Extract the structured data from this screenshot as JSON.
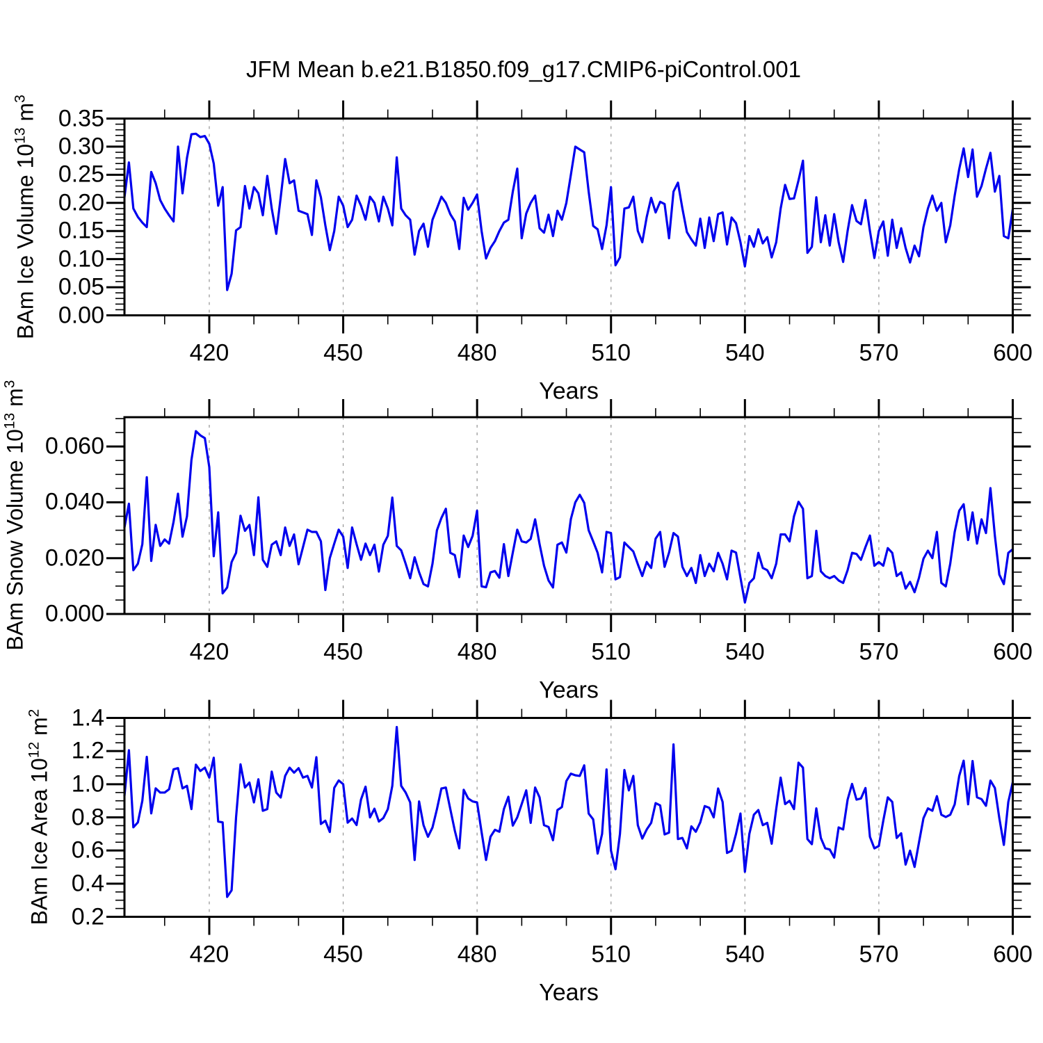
{
  "title": "JFM Mean b.e21.B1850.f09_g17.CMIP6-piControl.001",
  "line_color": "#0000ee",
  "grid_color": "#999999",
  "frame_color": "#000000",
  "x_axis": {
    "label": "Years",
    "min": 401,
    "max": 600,
    "major_ticks": [
      420,
      450,
      480,
      510,
      540,
      570,
      600
    ],
    "minor_step": 10,
    "gridlines": "dashed-vertical-at-major-ticks"
  },
  "chart_data": [
    {
      "type": "line",
      "name": "BAm Ice Volume",
      "ylabel": {
        "base": "BAm Ice Volume 10",
        "exp": "13",
        "unit": " m",
        "unit_exp": "3"
      },
      "ylim": [
        0.0,
        0.35
      ],
      "yticks": [
        0.0,
        0.05,
        0.1,
        0.15,
        0.2,
        0.25,
        0.3,
        0.35
      ],
      "ytick_labels": [
        "0.00",
        "0.05",
        "0.10",
        "0.15",
        "0.20",
        "0.25",
        "0.30",
        "0.35"
      ],
      "y_minor_step": 0.01,
      "x_start": 401,
      "x_step": 1,
      "values": [
        0.21,
        0.272,
        0.19,
        0.175,
        0.165,
        0.157,
        0.255,
        0.235,
        0.205,
        0.19,
        0.178,
        0.167,
        0.3,
        0.217,
        0.28,
        0.322,
        0.323,
        0.317,
        0.319,
        0.305,
        0.27,
        0.195,
        0.228,
        0.045,
        0.074,
        0.151,
        0.157,
        0.23,
        0.19,
        0.228,
        0.217,
        0.178,
        0.248,
        0.19,
        0.145,
        0.21,
        0.278,
        0.235,
        0.24,
        0.186,
        0.183,
        0.18,
        0.143,
        0.24,
        0.21,
        0.16,
        0.116,
        0.15,
        0.211,
        0.195,
        0.157,
        0.17,
        0.213,
        0.195,
        0.17,
        0.211,
        0.2,
        0.167,
        0.211,
        0.19,
        0.16,
        0.281,
        0.19,
        0.178,
        0.17,
        0.108,
        0.15,
        0.163,
        0.122,
        0.17,
        0.19,
        0.211,
        0.2,
        0.18,
        0.167,
        0.118,
        0.209,
        0.188,
        0.2,
        0.215,
        0.15,
        0.101,
        0.12,
        0.132,
        0.15,
        0.165,
        0.17,
        0.22,
        0.261,
        0.137,
        0.181,
        0.2,
        0.213,
        0.155,
        0.147,
        0.179,
        0.141,
        0.186,
        0.17,
        0.2,
        0.25,
        0.3,
        0.295,
        0.29,
        0.22,
        0.159,
        0.153,
        0.118,
        0.16,
        0.228,
        0.089,
        0.103,
        0.19,
        0.192,
        0.211,
        0.15,
        0.13,
        0.175,
        0.209,
        0.183,
        0.202,
        0.198,
        0.137,
        0.22,
        0.236,
        0.19,
        0.148,
        0.135,
        0.124,
        0.172,
        0.12,
        0.174,
        0.132,
        0.18,
        0.183,
        0.126,
        0.174,
        0.164,
        0.13,
        0.087,
        0.141,
        0.122,
        0.153,
        0.128,
        0.139,
        0.103,
        0.13,
        0.19,
        0.232,
        0.207,
        0.208,
        0.24,
        0.275,
        0.111,
        0.122,
        0.21,
        0.13,
        0.178,
        0.124,
        0.18,
        0.13,
        0.095,
        0.15,
        0.196,
        0.168,
        0.162,
        0.205,
        0.15,
        0.102,
        0.15,
        0.167,
        0.106,
        0.17,
        0.12,
        0.155,
        0.12,
        0.094,
        0.124,
        0.105,
        0.157,
        0.19,
        0.213,
        0.186,
        0.2,
        0.13,
        0.16,
        0.213,
        0.26,
        0.297,
        0.246,
        0.295,
        0.211,
        0.23,
        0.261,
        0.289,
        0.22,
        0.248,
        0.141,
        0.137,
        0.189
      ]
    },
    {
      "type": "line",
      "name": "BAm Snow Volume",
      "ylabel": {
        "base": "BAm Snow Volume 10",
        "exp": "13",
        "unit": " m",
        "unit_exp": "3"
      },
      "ylim": [
        0.0,
        0.0705
      ],
      "yticks": [
        0.0,
        0.02,
        0.04,
        0.06
      ],
      "ytick_labels": [
        "0.000",
        "0.020",
        "0.040",
        "0.060"
      ],
      "y_minor_step": 0.005,
      "x_start": 401,
      "x_step": 1,
      "values": [
        0.031,
        0.0395,
        0.0157,
        0.018,
        0.025,
        0.049,
        0.019,
        0.0319,
        0.0244,
        0.0267,
        0.0252,
        0.033,
        0.0431,
        0.0277,
        0.035,
        0.0551,
        0.0655,
        0.064,
        0.063,
        0.0526,
        0.0207,
        0.0364,
        0.0074,
        0.0095,
        0.0186,
        0.0219,
        0.0352,
        0.0298,
        0.0319,
        0.0211,
        0.0418,
        0.0194,
        0.0169,
        0.0248,
        0.026,
        0.0211,
        0.031,
        0.0244,
        0.0285,
        0.0178,
        0.024,
        0.0302,
        0.0294,
        0.0294,
        0.026,
        0.0086,
        0.02,
        0.0252,
        0.0302,
        0.0277,
        0.0165,
        0.031,
        0.025,
        0.0194,
        0.0252,
        0.0211,
        0.0248,
        0.0152,
        0.0248,
        0.028,
        0.0417,
        0.0244,
        0.0228,
        0.018,
        0.0128,
        0.0203,
        0.015,
        0.0107,
        0.0099,
        0.018,
        0.03,
        0.0344,
        0.0377,
        0.0219,
        0.0211,
        0.0132,
        0.0281,
        0.024,
        0.028,
        0.037,
        0.0099,
        0.0096,
        0.0149,
        0.0154,
        0.013,
        0.025,
        0.0136,
        0.022,
        0.0302,
        0.026,
        0.0256,
        0.0269,
        0.0339,
        0.025,
        0.0173,
        0.012,
        0.0095,
        0.0248,
        0.0256,
        0.022,
        0.034,
        0.04,
        0.0427,
        0.0398,
        0.03,
        0.026,
        0.0219,
        0.0149,
        0.0294,
        0.029,
        0.0124,
        0.0132,
        0.0256,
        0.024,
        0.0224,
        0.0178,
        0.0136,
        0.0186,
        0.0165,
        0.027,
        0.0294,
        0.0169,
        0.022,
        0.029,
        0.0277,
        0.0169,
        0.0136,
        0.0165,
        0.0111,
        0.0211,
        0.0136,
        0.018,
        0.0153,
        0.0219,
        0.018,
        0.0124,
        0.0227,
        0.022,
        0.013,
        0.0041,
        0.0111,
        0.0128,
        0.0219,
        0.0165,
        0.0157,
        0.0128,
        0.018,
        0.0285,
        0.0285,
        0.026,
        0.035,
        0.0402,
        0.0377,
        0.0128,
        0.0136,
        0.0298,
        0.0153,
        0.0136,
        0.0128,
        0.0136,
        0.012,
        0.0111,
        0.0157,
        0.0219,
        0.0215,
        0.0194,
        0.024,
        0.0281,
        0.0173,
        0.0186,
        0.0173,
        0.0236,
        0.0219,
        0.0136,
        0.0149,
        0.0091,
        0.0115,
        0.0078,
        0.013,
        0.0198,
        0.0227,
        0.02,
        0.0294,
        0.0111,
        0.0099,
        0.018,
        0.0294,
        0.037,
        0.0393,
        0.0265,
        0.0364,
        0.0252,
        0.0339,
        0.029,
        0.0451,
        0.028,
        0.0141,
        0.0107,
        0.0219,
        0.0232
      ]
    },
    {
      "type": "line",
      "name": "BAm Ice Area",
      "ylabel": {
        "base": "BAm Ice Area 10",
        "exp": "12",
        "unit": " m",
        "unit_exp": "2"
      },
      "ylim": [
        0.2,
        1.4
      ],
      "yticks": [
        0.2,
        0.4,
        0.6,
        0.8,
        1.0,
        1.2,
        1.4
      ],
      "ytick_labels": [
        "0.2",
        "0.4",
        "0.6",
        "0.8",
        "1.0",
        "1.2",
        "1.4"
      ],
      "y_minor_step": 0.05,
      "x_start": 401,
      "x_step": 1,
      "values": [
        0.93,
        1.205,
        0.74,
        0.77,
        0.9,
        1.165,
        0.824,
        0.975,
        0.95,
        0.95,
        0.97,
        1.09,
        1.097,
        0.975,
        0.99,
        0.85,
        1.118,
        1.08,
        1.1,
        1.04,
        1.16,
        0.775,
        0.77,
        0.32,
        0.36,
        0.8,
        1.12,
        0.98,
        1.01,
        0.89,
        1.03,
        0.84,
        0.85,
        1.076,
        0.95,
        0.92,
        1.05,
        1.1,
        1.07,
        1.097,
        1.04,
        1.05,
        0.98,
        1.163,
        0.76,
        0.78,
        0.712,
        0.978,
        1.023,
        1.0,
        0.768,
        0.793,
        0.754,
        0.908,
        0.985,
        0.8,
        0.852,
        0.775,
        0.796,
        0.85,
        0.99,
        1.345,
        0.99,
        0.95,
        0.89,
        0.543,
        0.896,
        0.753,
        0.683,
        0.739,
        0.85,
        0.974,
        0.98,
        0.85,
        0.72,
        0.613,
        0.966,
        0.914,
        0.896,
        0.89,
        0.711,
        0.543,
        0.683,
        0.725,
        0.713,
        0.85,
        0.924,
        0.75,
        0.8,
        0.88,
        0.963,
        0.767,
        0.98,
        0.921,
        0.753,
        0.742,
        0.662,
        0.844,
        0.862,
        1.019,
        1.064,
        1.054,
        1.05,
        1.114,
        0.823,
        0.788,
        0.582,
        0.7,
        1.089,
        0.6,
        0.487,
        0.7,
        1.086,
        0.963,
        1.05,
        0.753,
        0.672,
        0.727,
        0.767,
        0.886,
        0.872,
        0.697,
        0.708,
        1.24,
        0.669,
        0.676,
        0.613,
        0.746,
        0.713,
        0.77,
        0.868,
        0.858,
        0.8,
        0.974,
        0.893,
        0.585,
        0.599,
        0.7,
        0.823,
        0.472,
        0.7,
        0.816,
        0.844,
        0.753,
        0.767,
        0.641,
        0.85,
        1.04,
        0.88,
        0.9,
        0.85,
        1.13,
        1.1,
        0.669,
        0.638,
        0.854,
        0.676,
        0.613,
        0.606,
        0.557,
        0.739,
        0.727,
        0.907,
        1.002,
        0.907,
        0.914,
        0.977,
        0.683,
        0.613,
        0.627,
        0.78,
        0.921,
        0.893,
        0.676,
        0.704,
        0.515,
        0.599,
        0.501,
        0.65,
        0.795,
        0.854,
        0.84,
        0.928,
        0.816,
        0.802,
        0.816,
        0.879,
        1.05,
        1.142,
        0.879,
        1.14,
        0.921,
        0.91,
        0.87,
        1.022,
        0.977,
        0.795,
        0.634,
        0.893,
        1.012
      ]
    }
  ]
}
